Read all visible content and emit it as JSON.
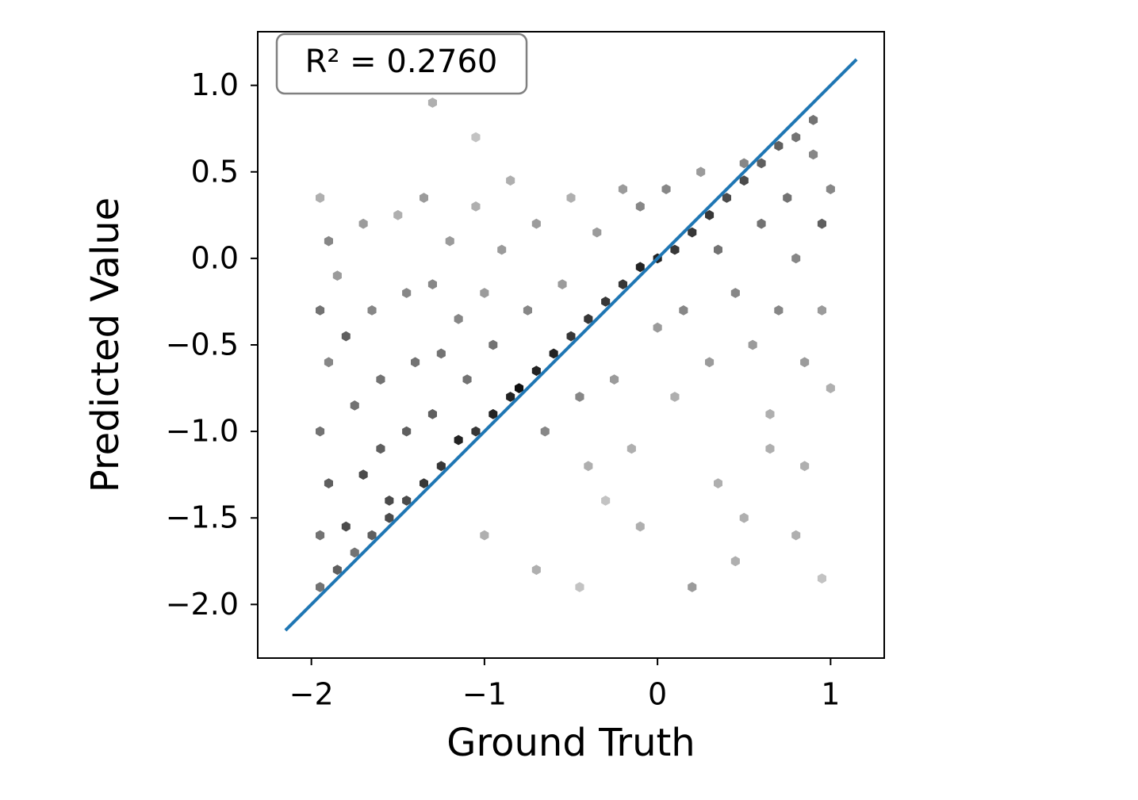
{
  "chart_data": {
    "type": "hexbin",
    "xlabel": "Ground Truth",
    "ylabel": "Predicted Value",
    "annotation": "R² = 0.2760",
    "xlim": [
      -2.31,
      1.31
    ],
    "ylim": [
      -2.31,
      1.31
    ],
    "xticks": [
      {
        "value": -2,
        "label": "−2"
      },
      {
        "value": -1,
        "label": "−1"
      },
      0,
      1
    ],
    "yticks": [
      {
        "value": -2,
        "label": "−2.0"
      },
      {
        "value": -1.5,
        "label": "−1.5"
      },
      {
        "value": -1,
        "label": "−1.0"
      },
      {
        "value": -0.5,
        "label": "−0.5"
      },
      {
        "value": 0,
        "label": "0.0"
      },
      0.5,
      {
        "value": 1,
        "label": "1.0"
      }
    ],
    "cmap": "Greys",
    "x": [
      -1.95,
      -1.85,
      -1.75,
      -1.65,
      -1.55,
      -1.45,
      -1.35,
      -1.25,
      -1.15,
      -1.05,
      -0.95,
      -0.85,
      -0.8,
      -0.7,
      -0.6,
      -0.5,
      -0.4,
      -0.3,
      -0.2,
      -0.1,
      0.0,
      0.1,
      0.2,
      0.3,
      0.4,
      0.5,
      0.6,
      0.7,
      0.8,
      0.9,
      -1.95,
      -1.9,
      -1.95,
      -1.9,
      -1.95,
      -1.9,
      -1.95,
      -1.85,
      -1.8,
      -1.75,
      -1.7,
      -1.8,
      -1.7,
      -1.65,
      -1.6,
      -1.6,
      -1.55,
      -1.5,
      -1.45,
      -1.4,
      -1.45,
      -1.35,
      -1.3,
      -1.25,
      -1.3,
      -1.2,
      -1.15,
      -1.1,
      -1.05,
      -1.0,
      -0.95,
      -0.9,
      -0.85,
      -0.75,
      -0.7,
      -0.65,
      -0.55,
      -0.5,
      -0.45,
      -0.4,
      -0.35,
      -0.25,
      -0.2,
      -0.15,
      -0.1,
      0.0,
      0.05,
      0.1,
      0.15,
      0.25,
      0.3,
      0.35,
      0.45,
      0.5,
      0.55,
      0.6,
      0.65,
      0.7,
      0.75,
      0.8,
      0.85,
      0.9,
      0.95,
      0.95,
      1.0,
      0.85,
      1.0,
      -1.3,
      -1.05,
      -0.45,
      -0.1,
      0.2,
      0.45,
      0.5,
      0.8,
      0.95,
      -0.7,
      -1.0,
      -0.3,
      0.35,
      0.65
    ],
    "y": [
      -1.9,
      -1.8,
      -1.7,
      -1.6,
      -1.5,
      -1.4,
      -1.3,
      -1.2,
      -1.05,
      -1.0,
      -0.9,
      -0.8,
      -0.75,
      -0.65,
      -0.55,
      -0.45,
      -0.35,
      -0.25,
      -0.15,
      -0.05,
      0.0,
      0.05,
      0.15,
      0.25,
      0.35,
      0.45,
      0.55,
      0.65,
      0.7,
      0.8,
      0.35,
      0.1,
      -0.3,
      -0.6,
      -1.0,
      -1.3,
      -1.6,
      -0.1,
      -0.45,
      -0.85,
      -1.25,
      -1.55,
      0.2,
      -0.3,
      -0.7,
      -1.1,
      -1.4,
      0.25,
      -0.2,
      -0.6,
      -1.0,
      0.35,
      -0.15,
      -0.55,
      -0.9,
      0.1,
      -0.35,
      -0.7,
      0.3,
      -0.2,
      -0.5,
      0.05,
      0.45,
      -0.3,
      0.2,
      -1.0,
      -0.15,
      0.35,
      -0.8,
      -1.2,
      0.15,
      -0.7,
      0.4,
      -1.1,
      0.3,
      -0.4,
      0.4,
      -0.8,
      -0.3,
      0.5,
      -0.6,
      0.05,
      -0.2,
      0.55,
      -0.5,
      0.2,
      -0.9,
      -0.3,
      0.35,
      0.0,
      -0.6,
      0.6,
      0.2,
      -0.3,
      -0.75,
      -1.2,
      0.4,
      0.9,
      0.7,
      -1.9,
      -1.55,
      -1.9,
      -1.75,
      -1.5,
      -1.6,
      -1.85,
      -1.8,
      -1.6,
      -1.4,
      -1.3,
      -1.1
    ],
    "counts": [
      5,
      6,
      5,
      6,
      7,
      7,
      8,
      8,
      9,
      8,
      9,
      9,
      10,
      9,
      9,
      8,
      8,
      8,
      8,
      9,
      9,
      8,
      8,
      8,
      7,
      7,
      6,
      6,
      5,
      5,
      2,
      4,
      5,
      4,
      5,
      6,
      5,
      3,
      6,
      5,
      7,
      7,
      3,
      4,
      5,
      6,
      7,
      2,
      4,
      5,
      6,
      3,
      4,
      5,
      6,
      3,
      4,
      5,
      2,
      3,
      5,
      3,
      2,
      4,
      3,
      4,
      3,
      2,
      4,
      2,
      3,
      3,
      3,
      2,
      4,
      3,
      4,
      2,
      4,
      3,
      3,
      5,
      4,
      4,
      3,
      5,
      2,
      4,
      5,
      4,
      3,
      4,
      6,
      3,
      2,
      2,
      4,
      2,
      1,
      1,
      2,
      3,
      2,
      2,
      2,
      1,
      2,
      2,
      1,
      2,
      2
    ],
    "fit_line": {
      "x": [
        -2.15,
        1.15
      ],
      "values": [
        -2.15,
        1.15
      ],
      "color": "#1f77b4"
    }
  }
}
